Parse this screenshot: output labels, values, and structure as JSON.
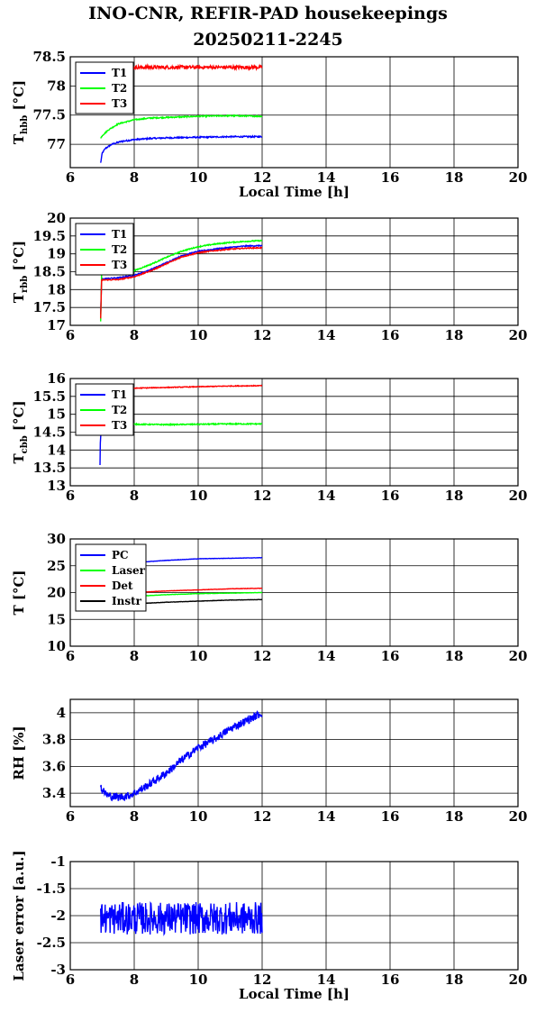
{
  "figure": {
    "title_line1": "INO-CNR, REFIR-PAD housekeepings",
    "title_line2": "20250211-2245"
  },
  "chart_data": [
    {
      "type": "line",
      "id": "thbb",
      "ylabel_main": "T",
      "ylabel_sub": "hbb",
      "ylabel_suffix": " [°C]",
      "xlabel": "Local Time [h]",
      "xlim": [
        6,
        20
      ],
      "ylim": [
        76.6,
        78.5
      ],
      "xticks": [
        6,
        8,
        10,
        12,
        14,
        16,
        18,
        20
      ],
      "yticks": [
        77,
        77.5,
        78,
        78.5
      ],
      "grid": true,
      "legend": "top-left",
      "series": [
        {
          "name": "T1",
          "color": "#0000ff",
          "x": [
            6.95,
            7.0,
            7.1,
            7.3,
            7.6,
            8.0,
            8.5,
            9.0,
            10.0,
            11.0,
            12.0
          ],
          "y": [
            76.68,
            76.85,
            76.93,
            77.0,
            77.05,
            77.08,
            77.1,
            77.11,
            77.12,
            77.13,
            77.13
          ],
          "noise": 0.012
        },
        {
          "name": "T2",
          "color": "#00ff00",
          "x": [
            6.95,
            7.0,
            7.2,
            7.5,
            8.0,
            8.5,
            9.0,
            10.0,
            11.0,
            12.0
          ],
          "y": [
            77.1,
            77.15,
            77.25,
            77.35,
            77.42,
            77.45,
            77.46,
            77.48,
            77.49,
            77.48
          ],
          "noise": 0.01
        },
        {
          "name": "T3",
          "color": "#ff0000",
          "x": [
            6.95,
            12.0
          ],
          "y": [
            78.32,
            78.32
          ],
          "noise": 0.03
        }
      ]
    },
    {
      "type": "line",
      "id": "trbb",
      "ylabel_main": "T",
      "ylabel_sub": "rbb",
      "ylabel_suffix": " [°C]",
      "xlabel": "",
      "xlim": [
        6,
        20
      ],
      "ylim": [
        17,
        20
      ],
      "xticks": [
        6,
        8,
        10,
        12,
        14,
        16,
        18,
        20
      ],
      "yticks": [
        17,
        17.5,
        18,
        18.5,
        19,
        19.5,
        20
      ],
      "grid": true,
      "legend": "top-left",
      "series": [
        {
          "name": "T1",
          "color": "#0000ff",
          "x": [
            6.95,
            6.98,
            7.0,
            7.5,
            8.0,
            8.5,
            9.0,
            9.5,
            10.0,
            10.5,
            11.0,
            11.5,
            12.0
          ],
          "y": [
            17.3,
            18.3,
            18.3,
            18.33,
            18.4,
            18.55,
            18.75,
            18.95,
            19.07,
            19.13,
            19.18,
            19.22,
            19.23
          ],
          "noise": 0.015
        },
        {
          "name": "T2",
          "color": "#00ff00",
          "x": [
            6.95,
            6.98,
            7.0,
            7.5,
            8.0,
            8.5,
            9.0,
            9.5,
            10.0,
            10.5,
            11.0,
            11.5,
            12.0
          ],
          "y": [
            17.1,
            18.4,
            18.42,
            18.45,
            18.53,
            18.7,
            18.9,
            19.08,
            19.2,
            19.27,
            19.32,
            19.35,
            19.37
          ],
          "noise": 0.015
        },
        {
          "name": "T3",
          "color": "#ff0000",
          "x": [
            6.95,
            6.98,
            7.0,
            7.5,
            8.0,
            8.5,
            9.0,
            9.5,
            10.0,
            10.5,
            11.0,
            11.5,
            12.0
          ],
          "y": [
            17.2,
            18.25,
            18.27,
            18.28,
            18.36,
            18.52,
            18.72,
            18.92,
            19.03,
            19.09,
            19.13,
            19.16,
            19.17
          ],
          "noise": 0.015
        }
      ]
    },
    {
      "type": "line",
      "id": "tcbb",
      "ylabel_main": "T",
      "ylabel_sub": "cbb",
      "ylabel_suffix": " [°C]",
      "xlabel": "",
      "xlim": [
        6,
        20
      ],
      "ylim": [
        13,
        16
      ],
      "xticks": [
        6,
        8,
        10,
        12,
        14,
        16,
        18,
        20
      ],
      "yticks": [
        13,
        13.5,
        14,
        14.5,
        15,
        15.5,
        16
      ],
      "grid": true,
      "legend": "top-left",
      "series": [
        {
          "name": "T1",
          "color": "#0000ff",
          "x": [
            6.93,
            6.94,
            6.96,
            6.98
          ],
          "y": [
            13.58,
            14.2,
            14.5,
            14.7
          ],
          "noise": 0.0
        },
        {
          "name": "T2",
          "color": "#00ff00",
          "x": [
            6.95,
            7.0,
            8.0,
            9.0,
            10.0,
            11.0,
            12.0
          ],
          "y": [
            14.75,
            14.75,
            14.72,
            14.71,
            14.72,
            14.73,
            14.73
          ],
          "noise": 0.015
        },
        {
          "name": "T3",
          "color": "#ff0000",
          "x": [
            6.95,
            7.0,
            8.0,
            9.0,
            10.0,
            11.0,
            12.0
          ],
          "y": [
            15.7,
            15.72,
            15.73,
            15.75,
            15.77,
            15.79,
            15.8
          ],
          "noise": 0.01
        }
      ]
    },
    {
      "type": "line",
      "id": "temps",
      "ylabel_main": "T [°C]",
      "ylabel_sub": "",
      "ylabel_suffix": "",
      "xlabel": "",
      "xlim": [
        6,
        20
      ],
      "ylim": [
        10,
        30
      ],
      "xticks": [
        6,
        8,
        10,
        12,
        14,
        16,
        18,
        20
      ],
      "yticks": [
        10,
        15,
        20,
        25,
        30
      ],
      "grid": true,
      "legend": "top-left",
      "series": [
        {
          "name": "PC",
          "color": "#0000ff",
          "x": [
            7.0,
            8.0,
            9.0,
            10.0,
            11.0,
            12.0
          ],
          "y": [
            25.0,
            25.6,
            26.0,
            26.3,
            26.4,
            26.5
          ],
          "noise": 0.03
        },
        {
          "name": "Laser",
          "color": "#00ff00",
          "x": [
            7.0,
            8.0,
            9.0,
            10.0,
            11.0,
            12.0
          ],
          "y": [
            19.0,
            19.3,
            19.6,
            19.8,
            19.9,
            20.0
          ],
          "noise": 0.03
        },
        {
          "name": "Det",
          "color": "#ff0000",
          "x": [
            7.0,
            8.0,
            9.0,
            10.0,
            11.0,
            12.0
          ],
          "y": [
            19.8,
            20.0,
            20.3,
            20.5,
            20.7,
            20.8
          ],
          "noise": 0.03
        },
        {
          "name": "Instr",
          "color": "#000000",
          "x": [
            7.0,
            8.0,
            9.0,
            10.0,
            11.0,
            12.0
          ],
          "y": [
            17.7,
            17.9,
            18.2,
            18.4,
            18.6,
            18.7
          ],
          "noise": 0.03
        }
      ]
    },
    {
      "type": "line",
      "id": "rh",
      "ylabel_main": "RH [%]",
      "ylabel_sub": "",
      "ylabel_suffix": "",
      "xlabel": "",
      "xlim": [
        6,
        20
      ],
      "ylim": [
        3.3,
        4.1
      ],
      "xticks": [
        6,
        8,
        10,
        12,
        14,
        16,
        18,
        20
      ],
      "yticks": [
        3.4,
        3.6,
        3.8,
        4.0
      ],
      "ytick_labels": [
        "3.4",
        "3.6",
        "3.8",
        "4"
      ],
      "grid": true,
      "legend": "none",
      "series": [
        {
          "name": "",
          "color": "#0000ff",
          "x": [
            6.95,
            7.0,
            7.2,
            7.5,
            7.8,
            8.0,
            8.5,
            9.0,
            9.5,
            10.0,
            10.5,
            11.0,
            11.5,
            12.0
          ],
          "y": [
            3.45,
            3.42,
            3.38,
            3.37,
            3.38,
            3.4,
            3.47,
            3.55,
            3.65,
            3.74,
            3.8,
            3.88,
            3.94,
            4.0
          ],
          "noise": 0.03
        }
      ]
    },
    {
      "type": "line",
      "id": "laser_error",
      "ylabel_main": "Laser error [a.u.]",
      "ylabel_sub": "",
      "ylabel_suffix": "",
      "xlabel": "Local Time [h]",
      "xlim": [
        6,
        20
      ],
      "ylim": [
        -3,
        -1
      ],
      "xticks": [
        6,
        8,
        10,
        12,
        14,
        16,
        18,
        20
      ],
      "yticks": [
        -3,
        -2.5,
        -2,
        -1.5,
        -1
      ],
      "grid": true,
      "legend": "none",
      "series": [
        {
          "name": "",
          "color": "#0000ff",
          "x": [
            6.95,
            12.0
          ],
          "y": [
            -2.05,
            -2.05
          ],
          "noise": 0.3
        }
      ]
    }
  ]
}
